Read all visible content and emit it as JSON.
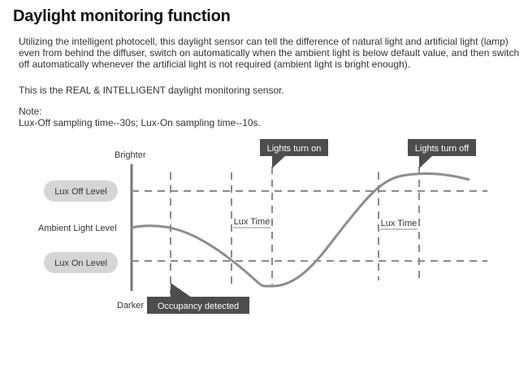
{
  "title": "Daylight monitoring function",
  "description": "Utilizing the intelligent photocell, this daylight sensor can tell the difference of natural light and artificial light (lamp) even from behind the diffuser, switch on automatically when the ambient light is below default value, and then switch off automatically whenever the artificial light is not required (ambient light is bright enough).",
  "statement": "This is the REAL & INTELLIGENT daylight monitoring sensor.",
  "note": {
    "label": "Note:",
    "text": "Lux-Off sampling time--30s; Lux-On sampling time--10s."
  },
  "diagram": {
    "axis_top_label": "Brighter",
    "axis_bottom_label": "Darker",
    "ambient_label": "Ambient Light Level",
    "lux_off_label": "Lux Off Level",
    "lux_on_label": "Lux On Level",
    "lux_time_label_1": "Lux Time",
    "lux_time_label_2": "Lux Time",
    "callout_lights_on": "Lights turn on",
    "callout_lights_off": "Lights turn off",
    "callout_occupancy": "Occupancy detected",
    "colors": {
      "curve": "#8c8c8c",
      "dashed": "#8a8a8a",
      "callout_bg": "#4d4d4d",
      "pill_bg": "#d6d6d6"
    }
  }
}
